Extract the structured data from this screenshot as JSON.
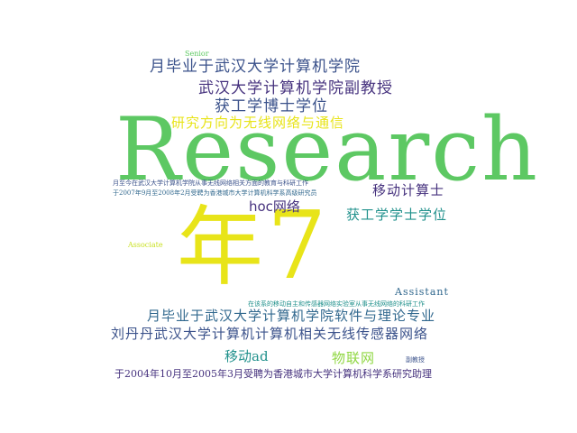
{
  "words": [
    {
      "text": "Research",
      "color": "#5dc863"
    },
    {
      "text": "年",
      "color": "#e8e419"
    },
    {
      "text": "7",
      "color": "#e8e419"
    },
    {
      "text": "月毕业于武汉大学计算机学院",
      "color": "#3b528b"
    },
    {
      "text": "武汉大学计算机学院副教授",
      "color": "#46327e"
    },
    {
      "text": "获工学博士学位",
      "color": "#3b528b"
    },
    {
      "text": "研究方向为无线网络与通信",
      "color": "#e8e419"
    },
    {
      "text": "移动计算士",
      "color": "#46327e"
    },
    {
      "text": "hoc网络",
      "color": "#46327e"
    },
    {
      "text": "获工学学士学位",
      "color": "#21918c"
    },
    {
      "text": "月至今在武汉大学计算机学院从事无线网络相关方面的教育与科研工作",
      "color": "#3b528b"
    },
    {
      "text": "于2007年9月至2008年2月受聘为香港城市大学计算机科学系高级研究员",
      "color": "#31688e"
    },
    {
      "text": "Senior",
      "color": "#5ec962"
    },
    {
      "text": "Associate",
      "color": "#c8e020"
    },
    {
      "text": "Assistant",
      "color": "#31688e"
    },
    {
      "text": "在该系的移动自主和传感器网络实验室从事无线网络的科研工作",
      "color": "#21918c"
    },
    {
      "text": "月毕业于武汉大学计算机学院软件与理论专业",
      "color": "#31688e"
    },
    {
      "text": "刘丹丹武汉大学计算机计算机相关无线传感器网络",
      "color": "#3b528b"
    },
    {
      "text": "移动ad",
      "color": "#21918c"
    },
    {
      "text": "物联网",
      "color": "#90d743"
    },
    {
      "text": "副教授",
      "color": "#3b528b"
    },
    {
      "text": "于2004年10月至2005年3月受聘为香港城市大学计算机科学系研究助理",
      "color": "#46327e"
    }
  ]
}
